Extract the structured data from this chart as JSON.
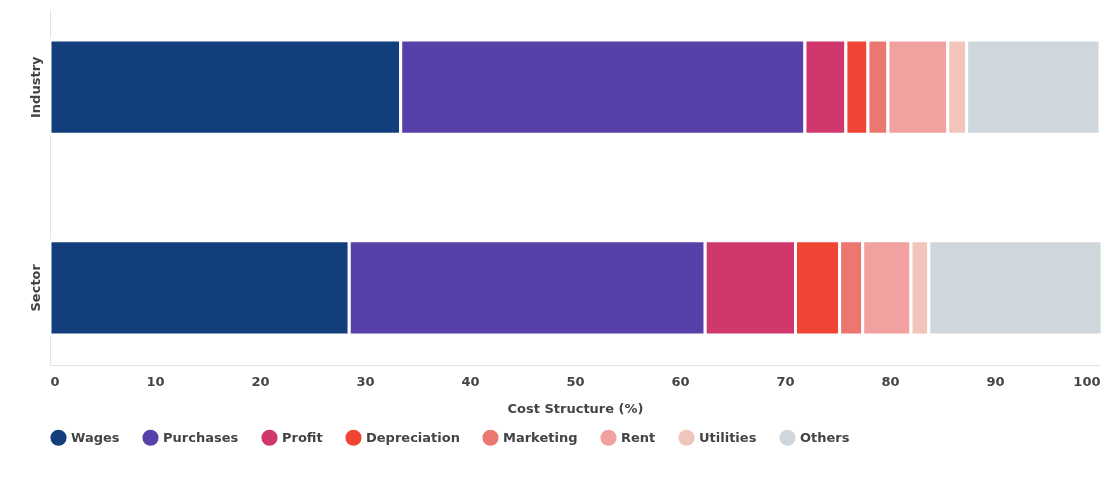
{
  "chart_data": {
    "type": "bar",
    "orientation": "horizontal",
    "stacked": true,
    "xlabel": "Cost Structure (%)",
    "categories": [
      "Industry",
      "Sector"
    ],
    "xlim": [
      0,
      100
    ],
    "xticks": [
      0,
      10,
      20,
      30,
      40,
      50,
      60,
      70,
      80,
      90,
      100
    ],
    "grid": false,
    "legend": "bottom",
    "series": [
      {
        "name": "Wages",
        "color": "#123e7c",
        "values": [
          33.4,
          28.5
        ]
      },
      {
        "name": "Purchases",
        "color": "#5741a9",
        "values": [
          38.5,
          33.9
        ]
      },
      {
        "name": "Profit",
        "color": "#d0376d",
        "values": [
          3.9,
          8.6
        ]
      },
      {
        "name": "Depreciation",
        "color": "#f04434",
        "values": [
          2.1,
          4.2
        ]
      },
      {
        "name": "Marketing",
        "color": "#ec7670",
        "values": [
          1.9,
          2.2
        ]
      },
      {
        "name": "Rent",
        "color": "#f0a1a0",
        "values": [
          5.7,
          4.6
        ]
      },
      {
        "name": "Utilities",
        "color": "#f2c5bc",
        "values": [
          1.8,
          1.7
        ]
      },
      {
        "name": "Others",
        "color": "#cfd7dd",
        "values": [
          12.7,
          16.5
        ]
      }
    ]
  }
}
